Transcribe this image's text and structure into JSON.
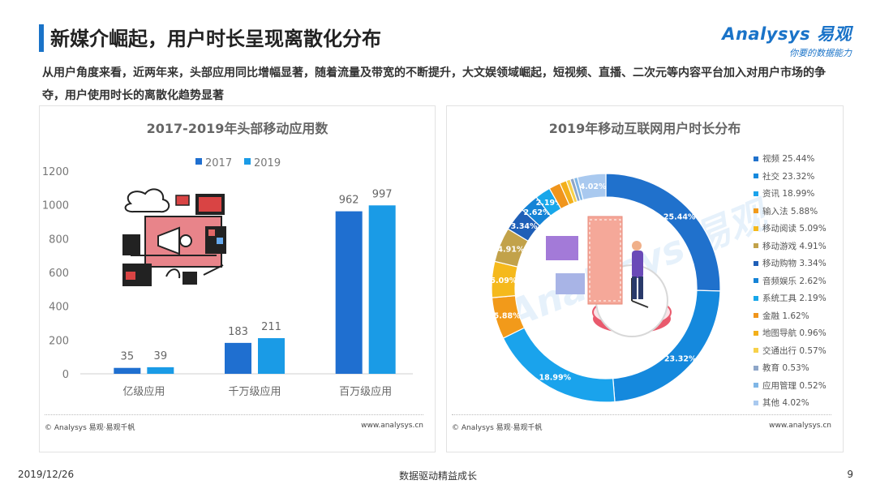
{
  "page": {
    "title": "新媒介崛起，用户时长呈现离散化分布",
    "intro": "从用户角度来看，近两年来，头部应用同比增幅显著，随着流量及带宽的不断提升，大文娱领域崛起，短视频、直播、二次元等内容平台加入对用户市场的争夺，用户使用时长的离散化趋势显著",
    "logo_main": "Analysys 易观",
    "logo_sub": "你要的数据能力",
    "footer_date": "2019/12/26",
    "footer_center": "数据驱动精益成长",
    "footer_page": "9",
    "source_left": "© Analysys 易观·易观千帆",
    "source_right": "www.analysys.cn"
  },
  "chart_data": [
    {
      "type": "bar",
      "title": "2017-2019年头部移动应用数",
      "categories": [
        "亿级应用",
        "千万级应用",
        "百万级应用"
      ],
      "series": [
        {
          "name": "2017",
          "values": [
            35,
            183,
            962
          ],
          "color": "#1f6fd0"
        },
        {
          "name": "2019",
          "values": [
            39,
            211,
            997
          ],
          "color": "#1a9be6"
        }
      ],
      "yticks": [
        "0",
        "200",
        "400",
        "600",
        "800",
        "1000",
        "1200"
      ],
      "ylim": [
        0,
        1200
      ],
      "legend_position": "top",
      "grid": false
    },
    {
      "type": "pie",
      "title": "2019年移动互联网用户时长分布",
      "legend_position": "right",
      "slices": [
        {
          "label": "视频",
          "value": 25.44,
          "display": "25.44%",
          "color": "#2071cc",
          "show_label": true
        },
        {
          "label": "社交",
          "value": 23.32,
          "display": "23.32%",
          "color": "#1589dd",
          "show_label": true
        },
        {
          "label": "资讯",
          "value": 18.99,
          "display": "18.99%",
          "color": "#1aa3ec",
          "show_label": true
        },
        {
          "label": "输入法",
          "value": 5.88,
          "display": "5.88%",
          "color": "#f29a1a",
          "show_label": true
        },
        {
          "label": "移动阅读",
          "value": 5.09,
          "display": "5.09%",
          "color": "#f5b91c",
          "show_label": true
        },
        {
          "label": "移动游戏",
          "value": 4.91,
          "display": "4.91%",
          "color": "#c2a24a",
          "show_label": true
        },
        {
          "label": "移动购物",
          "value": 3.34,
          "display": "3.34%",
          "color": "#1f5fb7",
          "show_label": true
        },
        {
          "label": "音频娱乐",
          "value": 2.62,
          "display": "2.62%",
          "color": "#1583d6",
          "show_label": true
        },
        {
          "label": "系统工具",
          "value": 2.19,
          "display": "2.19%",
          "color": "#18a7ea",
          "show_label": true
        },
        {
          "label": "金融",
          "value": 1.62,
          "display": "1.62%",
          "color": "#f0951c",
          "show_label": false
        },
        {
          "label": "地图导航",
          "value": 0.96,
          "display": "0.96%",
          "color": "#f3b01b",
          "show_label": false
        },
        {
          "label": "交通出行",
          "value": 0.57,
          "display": "0.57%",
          "color": "#f7d14a",
          "show_label": false
        },
        {
          "label": "教育",
          "value": 0.53,
          "display": "0.53%",
          "color": "#8ea6c8",
          "show_label": false
        },
        {
          "label": "应用管理",
          "value": 0.52,
          "display": "0.52%",
          "color": "#7fb6e6",
          "show_label": false
        },
        {
          "label": "其他",
          "value": 4.02,
          "display": "4.02%",
          "color": "#a9c9ef",
          "show_label": true
        }
      ]
    }
  ],
  "colors": {
    "accent": "#1a73c8",
    "axis_text": "#666666"
  }
}
